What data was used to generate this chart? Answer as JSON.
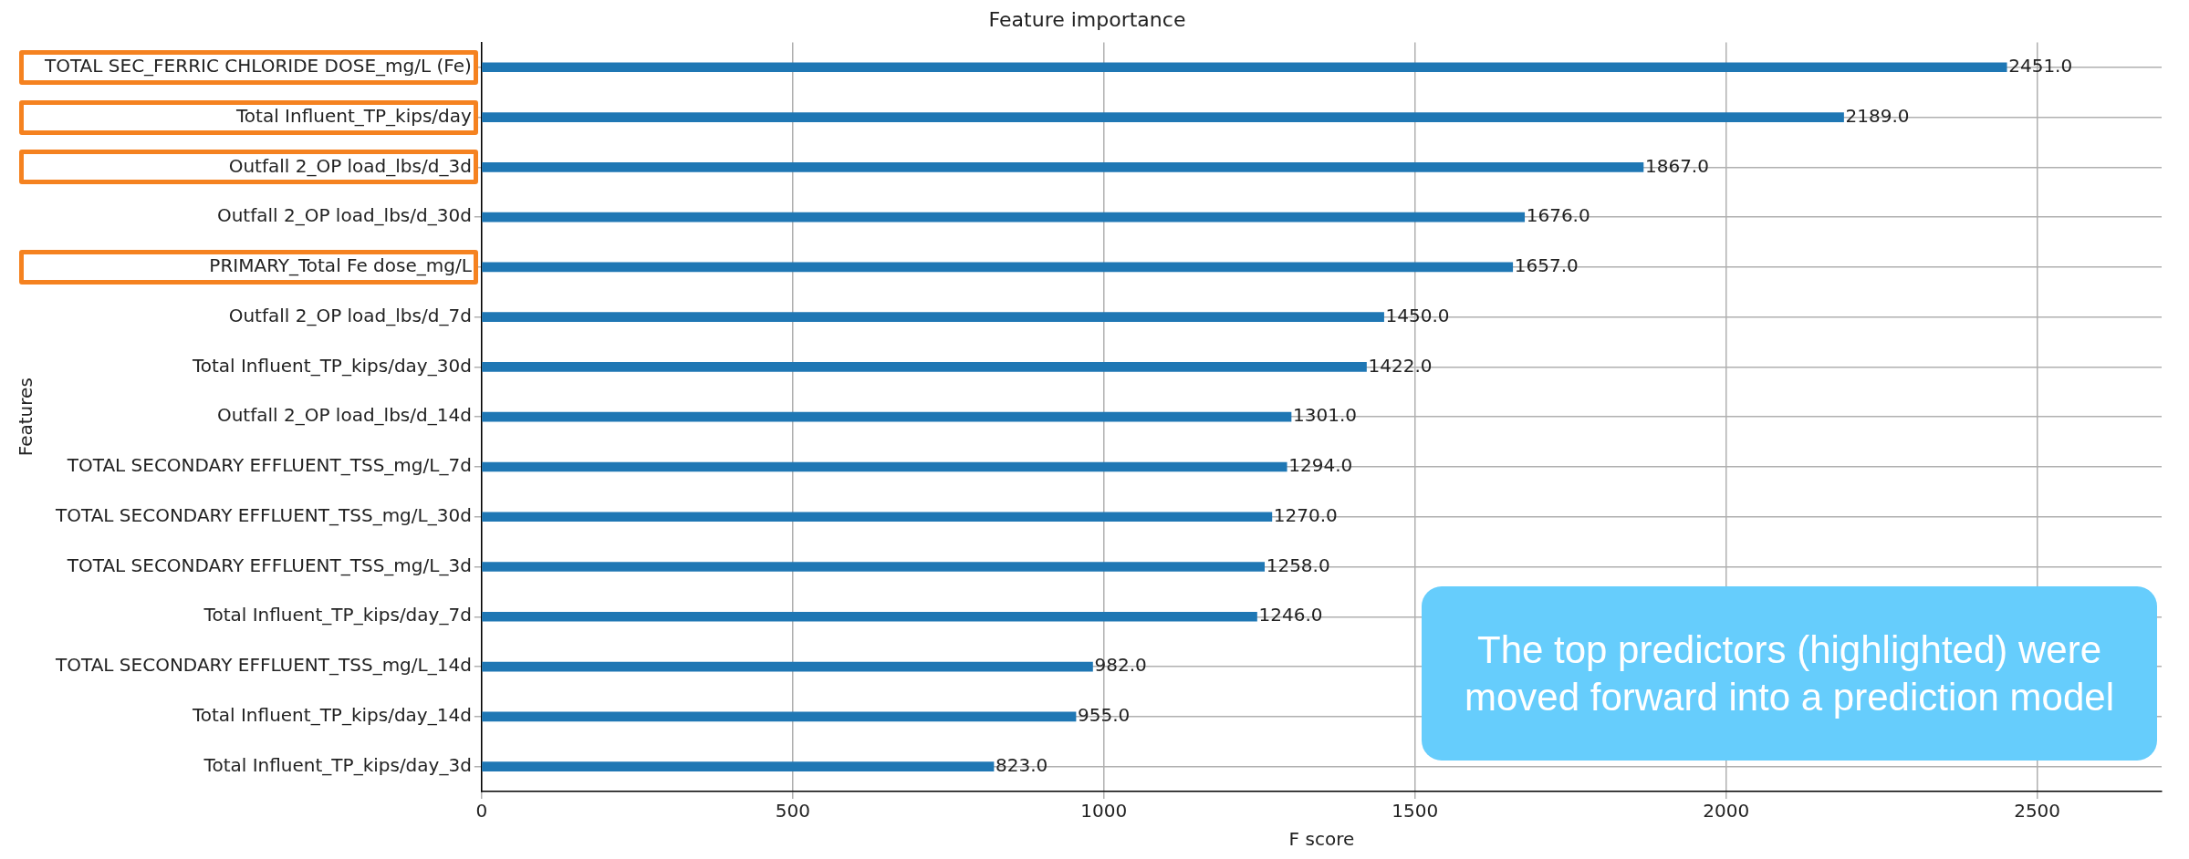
{
  "chart_data": {
    "type": "bar",
    "orientation": "horizontal",
    "title": "Feature importance",
    "xlabel": "F score",
    "ylabel": "Features",
    "categories": [
      "TOTAL SEC_FERRIC CHLORIDE DOSE_mg/L (Fe)",
      "Total Influent_TP_kips/day",
      "Outfall 2_OP load_lbs/d_3d",
      "Outfall 2_OP load_lbs/d_30d",
      "PRIMARY_Total Fe dose_mg/L",
      "Outfall 2_OP load_lbs/d_7d",
      "Total Influent_TP_kips/day_30d",
      "Outfall 2_OP load_lbs/d_14d",
      "TOTAL SECONDARY EFFLUENT_TSS_mg/L_7d",
      "TOTAL SECONDARY EFFLUENT_TSS_mg/L_30d",
      "TOTAL SECONDARY EFFLUENT_TSS_mg/L_3d",
      "Total Influent_TP_kips/day_7d",
      "TOTAL SECONDARY EFFLUENT_TSS_mg/L_14d",
      "Total Influent_TP_kips/day_14d",
      "Total Influent_TP_kips/day_3d"
    ],
    "values": [
      2451,
      2189,
      1867,
      1676,
      1657,
      1450,
      1422,
      1301,
      1294,
      1270,
      1258,
      1246,
      982,
      955,
      823
    ],
    "value_labels": [
      "2451.0",
      "2189.0",
      "1867.0",
      "1676.0",
      "1657.0",
      "1450.0",
      "1422.0",
      "1301.0",
      "1294.0",
      "1270.0",
      "1258.0",
      "1246.0",
      "982.0",
      "955.0",
      "823.0"
    ],
    "color": "#1f77b4",
    "xlim": [
      0,
      2700
    ],
    "xticks": [
      0,
      500,
      1000,
      1500,
      2000,
      2500
    ],
    "grid": true,
    "annotations": [
      "The top predictors (highlighted) were moved forward into a prediction model"
    ]
  }
}
